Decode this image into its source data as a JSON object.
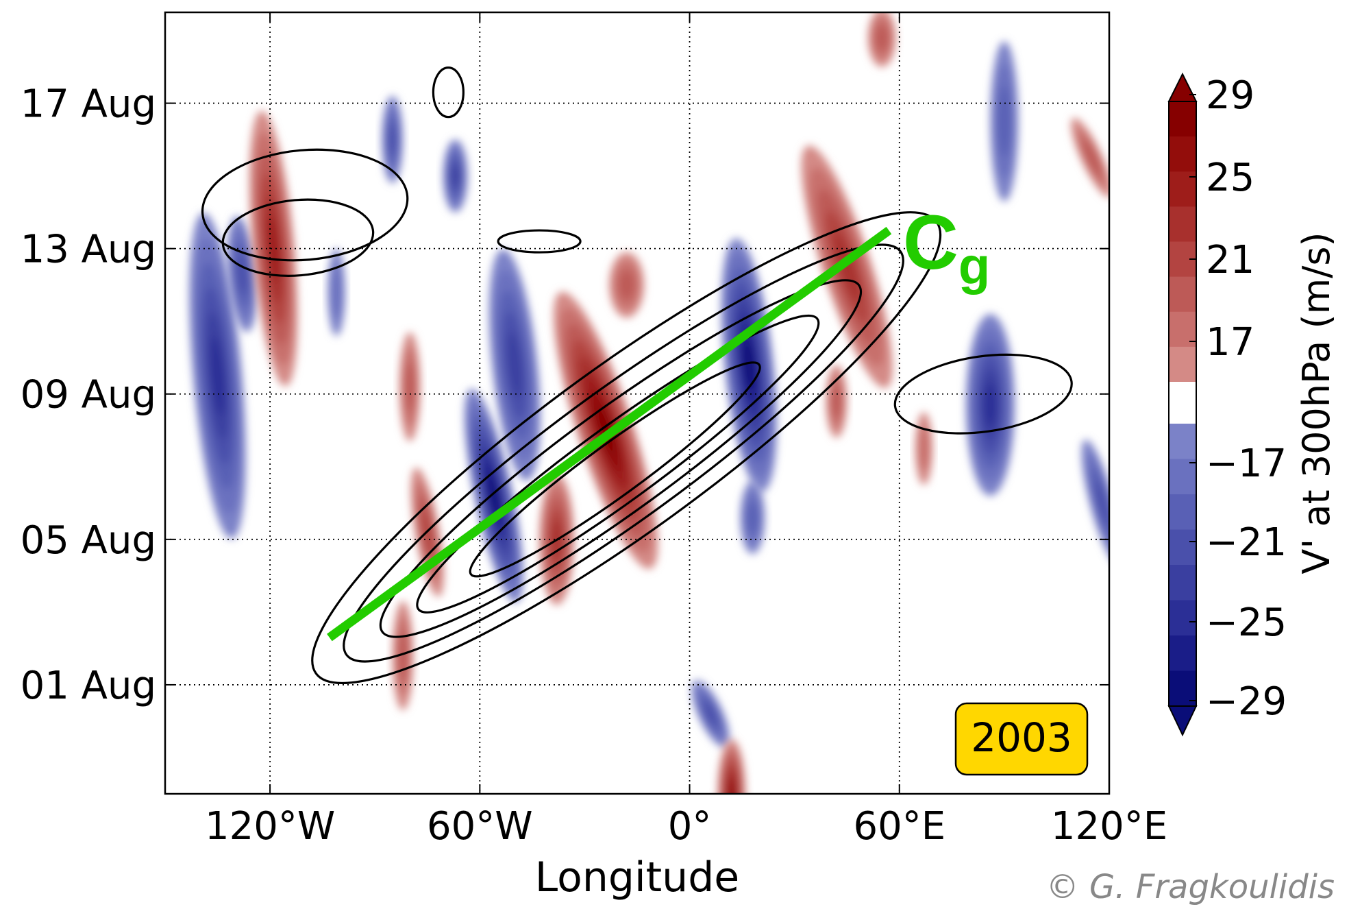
{
  "chart_data": {
    "type": "heatmap",
    "title": "",
    "xlabel": "Longitude",
    "ylabel": "",
    "xlim": [
      -150,
      120
    ],
    "ylim": [
      -3,
      18.5
    ],
    "x_ticks": [
      {
        "value": -120,
        "label": "120°W"
      },
      {
        "value": -60,
        "label": "60°W"
      },
      {
        "value": 0,
        "label": "0°"
      },
      {
        "value": 60,
        "label": "60°E"
      },
      {
        "value": 120,
        "label": "120°E"
      }
    ],
    "y_ticks": [
      {
        "value": 0,
        "label": "01 Aug"
      },
      {
        "value": 4,
        "label": "05 Aug"
      },
      {
        "value": 8,
        "label": "09 Aug"
      },
      {
        "value": 12,
        "label": "13 Aug"
      },
      {
        "value": 16,
        "label": "17 Aug"
      }
    ],
    "grid": true,
    "colorbar": {
      "label": "V' at 300hPa (m/s)",
      "ticks": [
        "29",
        "25",
        "21",
        "17",
        "−17",
        "−21",
        "−25",
        "−29"
      ],
      "positive_colors": [
        "#d48a86",
        "#c86f6c",
        "#bd5a57",
        "#b34441",
        "#a8302d",
        "#9e1d1a",
        "#930d0b",
        "#860000"
      ],
      "negative_colors": [
        "#7b82c8",
        "#6a71bf",
        "#5960b5",
        "#4a50ab",
        "#3a3fa0",
        "#2b2f96",
        "#1a1d88",
        "#0a0d78"
      ]
    },
    "annotations": {
      "group_velocity_label": "C",
      "group_velocity_subscript": "g",
      "group_velocity_color": "#22cc00",
      "group_velocity_line": {
        "start": [
          -103,
          1.3
        ],
        "end": [
          57,
          12.5
        ]
      },
      "year_badge": "2003",
      "year_badge_color": "#ffd700"
    },
    "anomalies": [
      {
        "sign": "neg",
        "lon": -135,
        "day": 8.5,
        "rlon": 7,
        "rday": 4.5,
        "rot": -5,
        "level": 6
      },
      {
        "sign": "neg",
        "lon": -128,
        "day": 11.3,
        "rlon": 4,
        "rday": 1.6,
        "rot": -5,
        "level": 4
      },
      {
        "sign": "pos",
        "lon": -119,
        "day": 12,
        "rlon": 6,
        "rday": 3.8,
        "rot": -5,
        "level": 6
      },
      {
        "sign": "neg",
        "lon": -101,
        "day": 10.8,
        "rlon": 2.5,
        "rday": 1.2,
        "rot": 0,
        "level": 2
      },
      {
        "sign": "neg",
        "lon": -85,
        "day": 15,
        "rlon": 3,
        "rday": 1.2,
        "rot": 0,
        "level": 4
      },
      {
        "sign": "neg",
        "lon": -67,
        "day": 14,
        "rlon": 3.5,
        "rday": 1,
        "rot": 0,
        "level": 5
      },
      {
        "sign": "pos",
        "lon": -80,
        "day": 8.2,
        "rlon": 3,
        "rday": 1.5,
        "rot": 0,
        "level": 3
      },
      {
        "sign": "pos",
        "lon": -75,
        "day": 4.2,
        "rlon": 3.5,
        "rday": 1.8,
        "rot": -10,
        "level": 4
      },
      {
        "sign": "pos",
        "lon": -82,
        "day": 0.8,
        "rlon": 3,
        "rday": 1.5,
        "rot": 0,
        "level": 3
      },
      {
        "sign": "neg",
        "lon": -56,
        "day": 5.2,
        "rlon": 5.5,
        "rday": 3,
        "rot": -12,
        "level": 8
      },
      {
        "sign": "neg",
        "lon": -50,
        "day": 8.8,
        "rlon": 6.5,
        "rday": 3.2,
        "rot": -6,
        "level": 5
      },
      {
        "sign": "pos",
        "lon": -24,
        "day": 7,
        "rlon": 8,
        "rday": 4,
        "rot": -18,
        "level": 8
      },
      {
        "sign": "pos",
        "lon": -38,
        "day": 4,
        "rlon": 5,
        "rday": 1.8,
        "rot": 0,
        "level": 5
      },
      {
        "sign": "pos",
        "lon": -18,
        "day": 11,
        "rlon": 5,
        "rday": 0.9,
        "rot": 0,
        "level": 3
      },
      {
        "sign": "neg",
        "lon": 17,
        "day": 8.8,
        "rlon": 7,
        "rday": 3.5,
        "rot": -6,
        "level": 8
      },
      {
        "sign": "pos",
        "lon": 45,
        "day": 11.5,
        "rlon": 7,
        "rday": 3.5,
        "rot": -18,
        "level": 5
      },
      {
        "sign": "pos",
        "lon": 55,
        "day": 17.8,
        "rlon": 4,
        "rday": 0.8,
        "rot": 0,
        "level": 3
      },
      {
        "sign": "neg",
        "lon": 86,
        "day": 7.7,
        "rlon": 7,
        "rday": 2.5,
        "rot": 0,
        "level": 6
      },
      {
        "sign": "neg",
        "lon": 90,
        "day": 15.5,
        "rlon": 4,
        "rday": 2.2,
        "rot": 0,
        "level": 3
      },
      {
        "sign": "pos",
        "lon": 115,
        "day": 14.5,
        "rlon": 3,
        "rday": 1.2,
        "rot": -25,
        "level": 3
      },
      {
        "sign": "neg",
        "lon": 118,
        "day": 5,
        "rlon": 3.5,
        "rday": 1.8,
        "rot": -15,
        "level": 4
      },
      {
        "sign": "neg",
        "lon": 18,
        "day": 4.6,
        "rlon": 3.5,
        "rday": 1,
        "rot": 0,
        "level": 3
      },
      {
        "sign": "neg",
        "lon": 6,
        "day": -0.8,
        "rlon": 3.5,
        "rday": 1,
        "rot": -25,
        "level": 4
      },
      {
        "sign": "pos",
        "lon": 12,
        "day": -3,
        "rlon": 4,
        "rday": 1.5,
        "rot": 0,
        "level": 7
      },
      {
        "sign": "pos",
        "lon": 42,
        "day": 7.8,
        "rlon": 3,
        "rday": 1,
        "rot": 0,
        "level": 3
      },
      {
        "sign": "pos",
        "lon": 67,
        "day": 6.5,
        "rlon": 2.5,
        "rday": 1,
        "rot": 0,
        "level": 2
      }
    ]
  },
  "copyright": "© G. Fragkoulidis"
}
